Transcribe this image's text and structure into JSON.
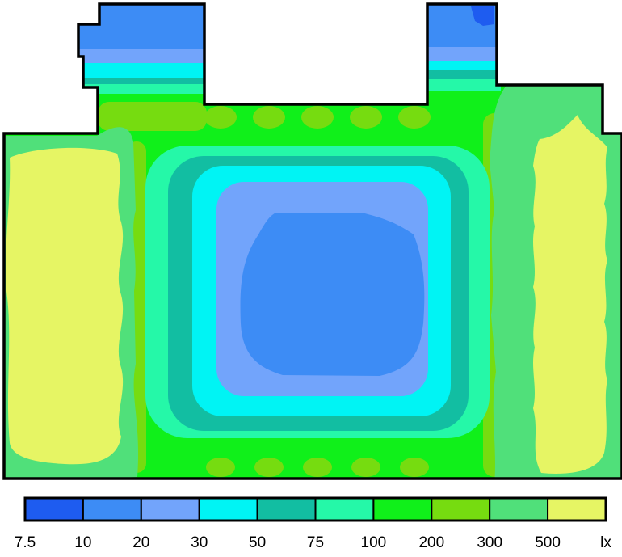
{
  "chart_data": {
    "type": "heatmap",
    "title": "",
    "unit": "lx",
    "legend_position": "bottom",
    "grid": false,
    "levels": [
      7.5,
      10,
      20,
      30,
      50,
      75,
      100,
      200,
      300,
      500
    ],
    "legend_tick_labels": [
      "7.5",
      "10",
      "20",
      "30",
      "50",
      "75",
      "100",
      "200",
      "300",
      "500",
      "lx"
    ],
    "bins": [
      {
        "from": 7.5,
        "to": 10,
        "color": "#1e5cf0"
      },
      {
        "from": 10,
        "to": 20,
        "color": "#3d8cf5"
      },
      {
        "from": 20,
        "to": 30,
        "color": "#72a4fb"
      },
      {
        "from": 30,
        "to": 50,
        "color": "#00f4f4"
      },
      {
        "from": 50,
        "to": 75,
        "color": "#12bea2"
      },
      {
        "from": 75,
        "to": 100,
        "color": "#25f8a8"
      },
      {
        "from": 100,
        "to": 200,
        "color": "#10f01a"
      },
      {
        "from": 200,
        "to": 300,
        "color": "#76dc10"
      },
      {
        "from": 300,
        "to": 500,
        "color": "#50e07a"
      },
      {
        "from": 500,
        "to": null,
        "color": "#e6f564"
      }
    ],
    "regions": {
      "outer_floor_band": "100-200",
      "lightwell_lights": "200-300",
      "side_strips": "300-500",
      "side_peak_left": ">500",
      "side_peak_right": ">500",
      "ring_75_100": "75-100",
      "ring_50_75": "50-75",
      "ring_30_50": "30-50",
      "ring_20_30": "20-30",
      "center_core": "10-20",
      "alcove_left": "10-20",
      "alcove_right": "10-20",
      "alcove_right_minimum": "7.5-10"
    },
    "outline_color": "#000000"
  }
}
